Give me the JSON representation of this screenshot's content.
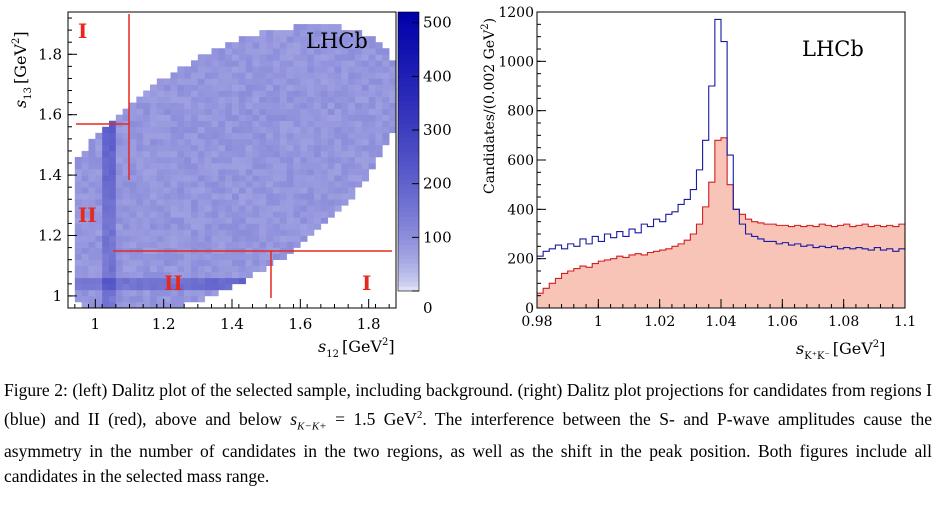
{
  "figure": {
    "left": {
      "watermark": "LHCb",
      "xlabel": "s",
      "xlabel_sub": "12",
      "xlabel_unit": "[GeV",
      "xlabel_unit_sup": "2",
      "xlabel_unit_close": "]",
      "ylabel": "s",
      "ylabel_sub": "13",
      "ylabel_unit": "[GeV",
      "ylabel_unit_sup": "2",
      "ylabel_unit_close": "]",
      "xticks": [
        "1",
        "1.2",
        "1.4",
        "1.6",
        "1.8"
      ],
      "yticks": [
        "1",
        "1.2",
        "1.4",
        "1.6",
        "1.8"
      ],
      "colorbar_ticks": [
        "0",
        "100",
        "200",
        "300",
        "400",
        "500"
      ],
      "region_labels": [
        "I",
        "II",
        "II",
        "I"
      ]
    },
    "right": {
      "watermark": "LHCb",
      "ylabel": "Candidates/(0.002 GeV",
      "ylabel_sup": "2",
      "ylabel_close": ")",
      "xlabel": "s",
      "xlabel_sub": "K⁺K⁻",
      "xlabel_unit": "[GeV",
      "xlabel_unit_sup": "2",
      "xlabel_unit_close": "]",
      "xticks": [
        "0.98",
        "1",
        "1.02",
        "1.04",
        "1.06",
        "1.08",
        "1.1"
      ],
      "yticks": [
        "0",
        "200",
        "400",
        "600",
        "800",
        "1000",
        "1200"
      ]
    }
  },
  "chart_data": [
    {
      "type": "heatmap",
      "title": "Dalitz plot of the selected sample",
      "xlabel": "s12 [GeV2]",
      "ylabel": "s13 [GeV2]",
      "xlim": [
        0.92,
        1.88
      ],
      "ylim": [
        0.96,
        1.94
      ],
      "zlim": [
        0,
        520
      ],
      "boundary_lines": {
        "region_split": 1.1,
        "I_limit_s13": 1.55,
        "I_limit_s12": 1.55
      },
      "regions": [
        "I",
        "II"
      ]
    },
    {
      "type": "line",
      "title": "Dalitz plot projections for regions I (blue) and II (red)",
      "xlabel": "s_{K+K-} [GeV2]",
      "ylabel": "Candidates/(0.002 GeV2)",
      "xlim": [
        0.98,
        1.1
      ],
      "ylim": [
        0,
        1200
      ],
      "x": [
        0.98,
        0.982,
        0.984,
        0.986,
        0.988,
        0.99,
        0.992,
        0.994,
        0.996,
        0.998,
        1.0,
        1.002,
        1.004,
        1.006,
        1.008,
        1.01,
        1.012,
        1.014,
        1.016,
        1.018,
        1.02,
        1.022,
        1.024,
        1.026,
        1.028,
        1.03,
        1.032,
        1.034,
        1.036,
        1.038,
        1.04,
        1.042,
        1.044,
        1.046,
        1.048,
        1.05,
        1.052,
        1.054,
        1.056,
        1.058,
        1.06,
        1.062,
        1.064,
        1.066,
        1.068,
        1.07,
        1.072,
        1.074,
        1.076,
        1.078,
        1.08,
        1.082,
        1.084,
        1.086,
        1.088,
        1.09,
        1.092,
        1.094,
        1.096,
        1.098
      ],
      "series": [
        {
          "name": "Region I",
          "color": "#1a1aa0",
          "values": [
            210,
            230,
            240,
            255,
            240,
            260,
            250,
            280,
            260,
            290,
            270,
            300,
            285,
            310,
            290,
            320,
            305,
            340,
            330,
            360,
            350,
            380,
            390,
            420,
            440,
            480,
            560,
            680,
            900,
            1170,
            1080,
            620,
            400,
            340,
            300,
            290,
            280,
            270,
            270,
            260,
            265,
            255,
            260,
            250,
            255,
            245,
            250,
            245,
            250,
            240,
            245,
            240,
            245,
            240,
            235,
            245,
            235,
            240,
            230,
            240
          ]
        },
        {
          "name": "Region II",
          "color": "#d21e1e",
          "fill": "#f8c4b8",
          "values": [
            60,
            80,
            100,
            120,
            140,
            150,
            160,
            170,
            165,
            180,
            190,
            195,
            200,
            210,
            205,
            215,
            220,
            215,
            225,
            230,
            235,
            240,
            250,
            260,
            275,
            300,
            340,
            410,
            510,
            680,
            690,
            500,
            400,
            380,
            360,
            350,
            345,
            340,
            340,
            335,
            335,
            330,
            335,
            330,
            335,
            330,
            340,
            335,
            330,
            335,
            340,
            330,
            335,
            340,
            330,
            335,
            330,
            335,
            330,
            340
          ]
        }
      ]
    }
  ],
  "caption": {
    "label": "Figure 2:",
    "text1": " (left) Dalitz plot of the selected sample, including background. (right) Dalitz plot projections for candidates from regions I (blue) and II (red), above and below ",
    "math_var": "s",
    "math_sub": "K−K+",
    "math_eq": " = 1.5 GeV",
    "math_sup": "2",
    "text2": ". The interference between the S- and P-wave amplitudes cause the asymmetry in the number of candidates in the two regions, as well as the shift in the peak position. Both figures include all candidates in the selected mass range."
  }
}
